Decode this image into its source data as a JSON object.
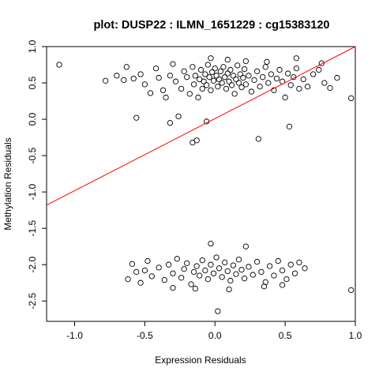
{
  "chart_data": {
    "type": "scatter",
    "title": "plot: DUSP22 : ILMN_1651229 : cg15383120",
    "xlabel": "Expression Residuals",
    "ylabel": "Methylation Residuals",
    "xlim": [
      -1.2,
      1.0
    ],
    "ylim": [
      -2.78,
      1.0
    ],
    "x_ticks": [
      "-1.0",
      "-0.5",
      "0.0",
      "0.5",
      "1.0"
    ],
    "x_tick_values": [
      -1.0,
      -0.5,
      0.0,
      0.5,
      1.0
    ],
    "y_ticks": [
      "-2.5",
      "-2.0",
      "-1.5",
      "-1.0",
      "-0.5",
      "0.0",
      "0.5",
      "1.0"
    ],
    "y_tick_values": [
      -2.5,
      -2.0,
      -1.5,
      -1.0,
      -0.5,
      0.0,
      0.5,
      1.0
    ],
    "grid": false,
    "point_color": "#000000",
    "regression_line": {
      "color": "#ff0000",
      "points": [
        [
          -1.2,
          -1.18
        ],
        [
          1.0,
          1.0
        ]
      ]
    },
    "series": [
      {
        "points": [
          [
            -1.11,
            0.75
          ],
          [
            -0.78,
            0.53
          ],
          [
            -0.7,
            0.6
          ],
          [
            -0.65,
            0.54
          ],
          [
            -0.63,
            0.72
          ],
          [
            -0.58,
            0.56
          ],
          [
            -0.56,
            0.02
          ],
          [
            -0.53,
            0.62
          ],
          [
            -0.5,
            0.48
          ],
          [
            -0.46,
            0.36
          ],
          [
            -0.42,
            0.7
          ],
          [
            -0.4,
            0.57
          ],
          [
            -0.37,
            0.4
          ],
          [
            -0.35,
            0.3
          ],
          [
            -0.32,
            0.6
          ],
          [
            -0.3,
            0.76
          ],
          [
            -0.28,
            0.52
          ],
          [
            -0.26,
            0.04
          ],
          [
            -0.24,
            0.42
          ],
          [
            -0.22,
            0.66
          ],
          [
            -0.2,
            0.58
          ],
          [
            -0.18,
            0.35
          ],
          [
            -0.16,
            0.72
          ],
          [
            -0.15,
            0.48
          ],
          [
            -0.14,
            0.6
          ],
          [
            -0.12,
            0.3
          ],
          [
            -0.11,
            0.55
          ],
          [
            -0.1,
            0.68
          ],
          [
            -0.09,
            0.42
          ],
          [
            -0.08,
            0.52
          ],
          [
            -0.07,
            0.62
          ],
          [
            -0.06,
            0.47
          ],
          [
            -0.05,
            0.75
          ],
          [
            -0.04,
            0.58
          ],
          [
            -0.03,
            0.4
          ],
          [
            -0.02,
            0.65
          ],
          [
            -0.01,
            0.53
          ],
          [
            0.0,
            0.7
          ],
          [
            0.01,
            0.6
          ],
          [
            0.02,
            0.45
          ],
          [
            0.03,
            0.55
          ],
          [
            0.04,
            0.66
          ],
          [
            0.05,
            0.5
          ],
          [
            0.06,
            0.72
          ],
          [
            0.07,
            0.58
          ],
          [
            0.08,
            0.42
          ],
          [
            0.09,
            0.63
          ],
          [
            0.1,
            0.52
          ],
          [
            0.11,
            0.68
          ],
          [
            0.12,
            0.47
          ],
          [
            0.13,
            0.6
          ],
          [
            0.14,
            0.35
          ],
          [
            0.15,
            0.55
          ],
          [
            0.16,
            0.74
          ],
          [
            0.17,
            0.5
          ],
          [
            0.18,
            0.62
          ],
          [
            0.19,
            0.44
          ],
          [
            0.2,
            0.57
          ],
          [
            0.21,
            0.69
          ],
          [
            0.22,
            0.48
          ],
          [
            0.24,
            0.6
          ],
          [
            0.26,
            0.38
          ],
          [
            0.28,
            0.54
          ],
          [
            0.3,
            0.66
          ],
          [
            0.32,
            0.45
          ],
          [
            0.34,
            0.58
          ],
          [
            0.36,
            0.72
          ],
          [
            0.38,
            0.5
          ],
          [
            0.4,
            0.62
          ],
          [
            0.42,
            0.4
          ],
          [
            0.44,
            0.56
          ],
          [
            0.46,
            0.68
          ],
          [
            0.48,
            0.52
          ],
          [
            0.5,
            0.3
          ],
          [
            0.52,
            0.63
          ],
          [
            0.54,
            0.47
          ],
          [
            0.56,
            0.58
          ],
          [
            0.58,
            0.7
          ],
          [
            0.6,
            0.42
          ],
          [
            0.63,
            0.55
          ],
          [
            0.66,
            0.45
          ],
          [
            0.7,
            0.62
          ],
          [
            0.74,
            0.68
          ],
          [
            0.78,
            0.5
          ],
          [
            0.82,
            0.43
          ],
          [
            0.87,
            0.57
          ],
          [
            0.97,
            0.29
          ],
          [
            -0.32,
            -0.05
          ],
          [
            -0.06,
            -0.03
          ],
          [
            -0.16,
            -0.32
          ],
          [
            -0.13,
            -0.29
          ],
          [
            0.31,
            -0.27
          ],
          [
            0.53,
            -0.1
          ],
          [
            0.09,
            0.82
          ],
          [
            -0.03,
            0.84
          ],
          [
            0.22,
            0.8
          ],
          [
            0.37,
            0.79
          ],
          [
            0.58,
            0.84
          ],
          [
            0.76,
            0.77
          ],
          [
            -0.59,
            -1.99
          ],
          [
            -0.56,
            -2.1
          ],
          [
            -0.53,
            -2.25
          ],
          [
            -0.5,
            -2.08
          ],
          [
            -0.48,
            -1.95
          ],
          [
            -0.45,
            -2.16
          ],
          [
            -0.4,
            -2.04
          ],
          [
            -0.36,
            -2.21
          ],
          [
            -0.33,
            -2.0
          ],
          [
            -0.3,
            -2.12
          ],
          [
            -0.27,
            -1.92
          ],
          [
            -0.24,
            -2.18
          ],
          [
            -0.22,
            -2.06
          ],
          [
            -0.2,
            -1.98
          ],
          [
            -0.17,
            -2.27
          ],
          [
            -0.15,
            -2.1
          ],
          [
            -0.13,
            -2.02
          ],
          [
            -0.11,
            -2.15
          ],
          [
            -0.09,
            -1.94
          ],
          [
            -0.07,
            -2.08
          ],
          [
            -0.05,
            -2.2
          ],
          [
            -0.03,
            -2.0
          ],
          [
            -0.01,
            -2.12
          ],
          [
            0.01,
            -1.9
          ],
          [
            0.03,
            -2.05
          ],
          [
            0.05,
            -2.17
          ],
          [
            0.07,
            -1.97
          ],
          [
            0.09,
            -2.09
          ],
          [
            0.11,
            -2.22
          ],
          [
            0.13,
            -2.01
          ],
          [
            0.15,
            -2.13
          ],
          [
            0.17,
            -1.93
          ],
          [
            0.19,
            -2.07
          ],
          [
            0.21,
            -2.19
          ],
          [
            0.24,
            -2.03
          ],
          [
            0.27,
            -2.14
          ],
          [
            0.3,
            -1.96
          ],
          [
            0.33,
            -2.1
          ],
          [
            0.36,
            -2.24
          ],
          [
            0.39,
            -2.02
          ],
          [
            0.42,
            -2.15
          ],
          [
            0.45,
            -1.95
          ],
          [
            0.48,
            -2.08
          ],
          [
            0.51,
            -2.2
          ],
          [
            0.54,
            -2.0
          ],
          [
            0.57,
            -2.12
          ],
          [
            0.6,
            -1.97
          ],
          [
            0.64,
            -2.05
          ],
          [
            0.97,
            -2.35
          ],
          [
            0.02,
            -2.64
          ],
          [
            -0.03,
            -1.71
          ],
          [
            0.22,
            -1.75
          ],
          [
            0.35,
            -2.3
          ],
          [
            -0.3,
            -2.32
          ],
          [
            0.1,
            -2.34
          ],
          [
            -0.14,
            -2.33
          ],
          [
            0.48,
            -2.28
          ],
          [
            -0.62,
            -2.2
          ]
        ]
      }
    ]
  }
}
